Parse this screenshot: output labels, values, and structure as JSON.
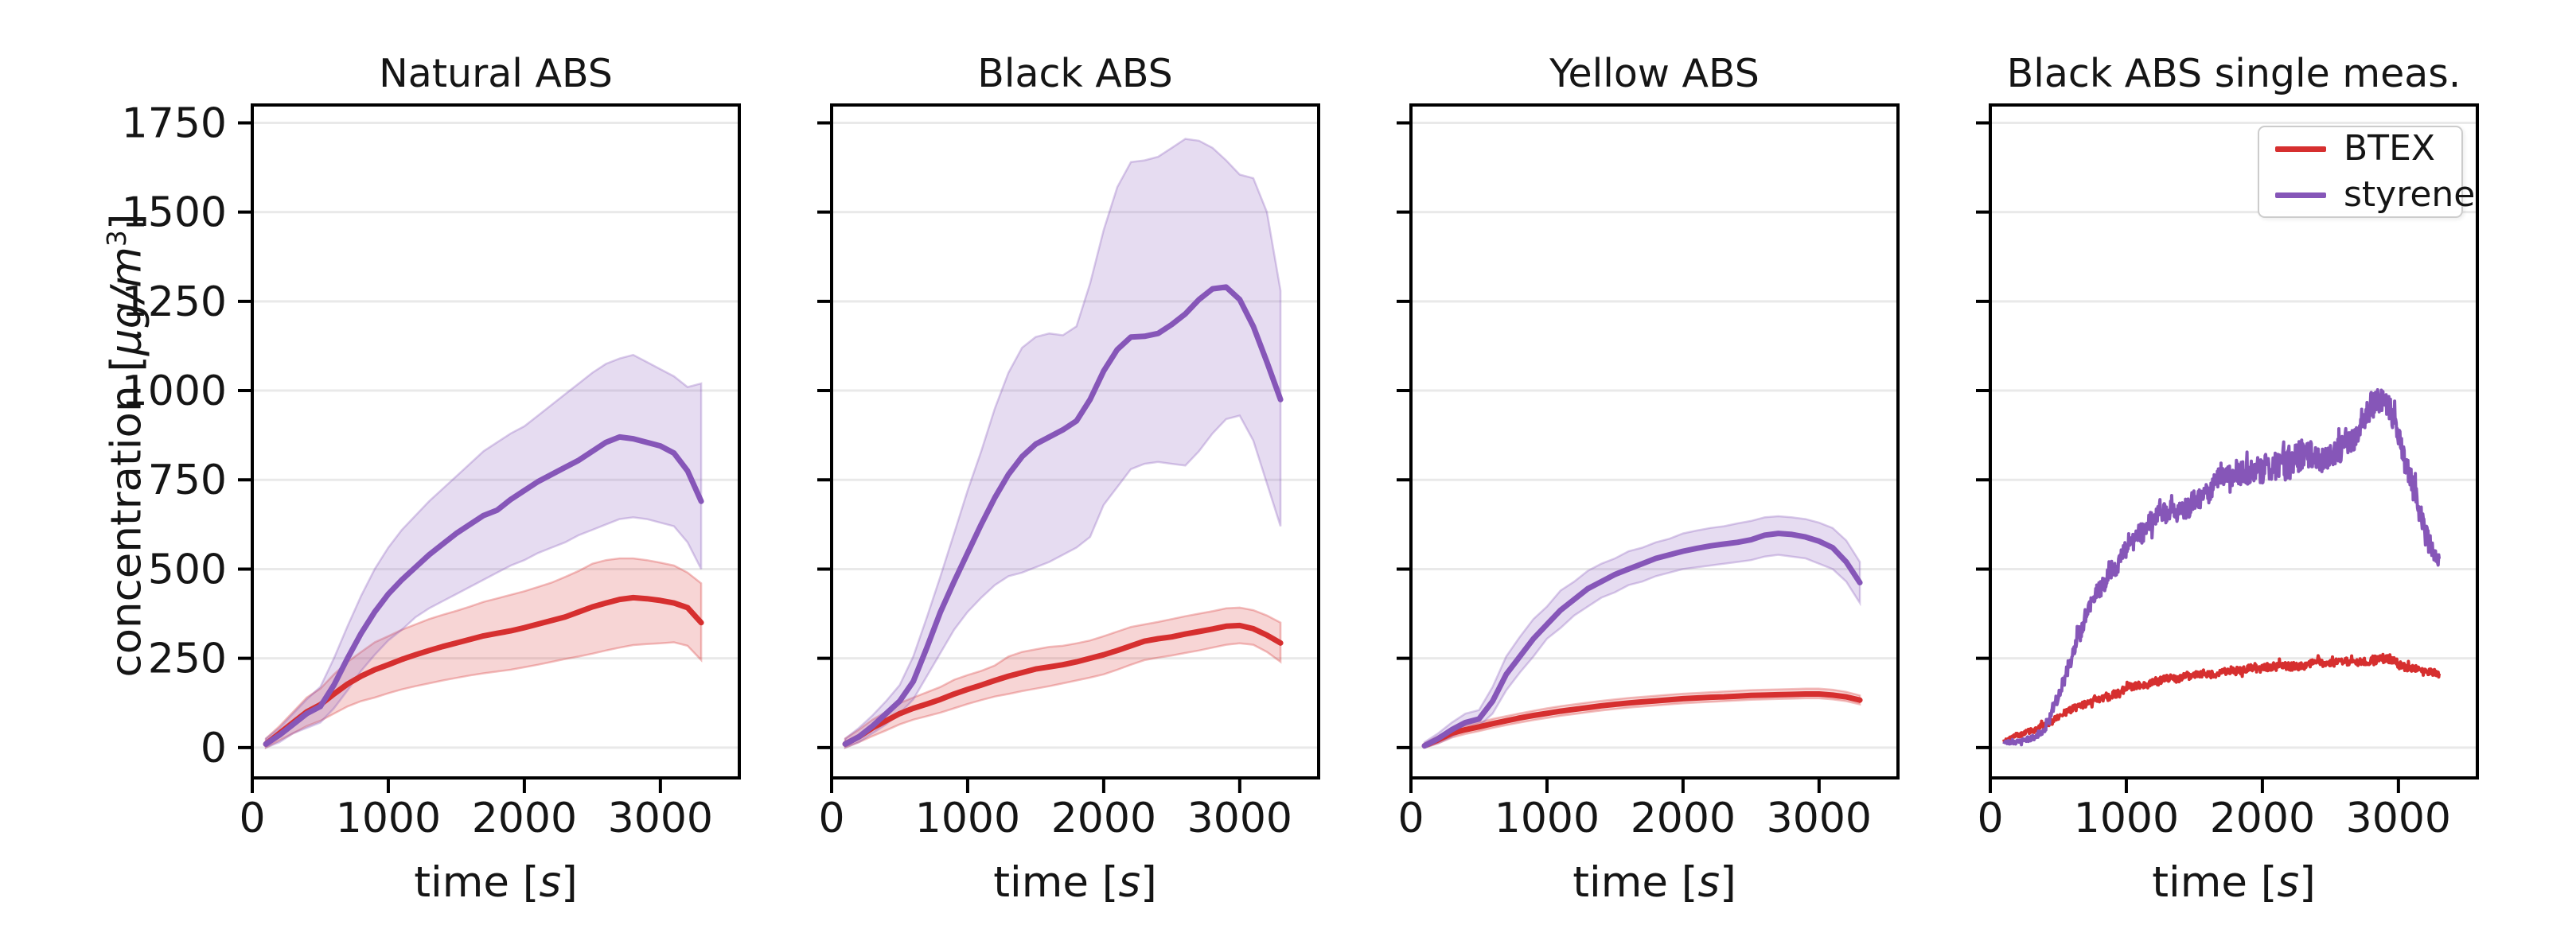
{
  "figure": {
    "ylabel": {
      "prefix": "concentration [",
      "italic_unit": "μg/m",
      "superscript": "3",
      "suffix": "]"
    },
    "xlabel": {
      "prefix": "time [",
      "italic_s": "s",
      "suffix": "]"
    },
    "colors": {
      "btex": "#d62f2f",
      "styrene": "#8656b8",
      "btex_band": "rgba(214,47,47,0.20)",
      "styrene_band": "rgba(140,95,190,0.22)",
      "grid": "#e9e9e9",
      "axis": "#000000",
      "tick_text": "#151515",
      "legend_border": "#cccccc"
    },
    "legend": {
      "items": [
        {
          "label": "BTEX",
          "color_key": "btex"
        },
        {
          "label": "styrene",
          "color_key": "styrene"
        }
      ]
    },
    "y_tick_labels": [
      "0",
      "250",
      "500",
      "750",
      "1000",
      "1250",
      "1500",
      "1750"
    ],
    "x_tick_labels": [
      "0",
      "1000",
      "2000",
      "3000"
    ],
    "y_tick_values": [
      0,
      250,
      500,
      750,
      1000,
      1250,
      1500,
      1750
    ],
    "x_tick_values": [
      0,
      1000,
      2000,
      3000
    ],
    "xlim": [
      0,
      3580
    ],
    "ylim": [
      -85,
      1800
    ],
    "grid": "horizontal-only"
  },
  "chart_data": [
    {
      "type": "line",
      "title": "Natural ABS",
      "x": [
        100,
        200,
        300,
        400,
        500,
        600,
        700,
        800,
        900,
        1000,
        1100,
        1200,
        1300,
        1400,
        1500,
        1600,
        1700,
        1800,
        1900,
        2000,
        2100,
        2200,
        2300,
        2400,
        2500,
        2600,
        2700,
        2800,
        2900,
        3000,
        3100,
        3200,
        3300
      ],
      "series": [
        {
          "name": "BTEX",
          "color_key": "btex",
          "values": [
            10,
            40,
            70,
            100,
            120,
            150,
            178,
            200,
            218,
            232,
            247,
            260,
            272,
            283,
            293,
            303,
            313,
            320,
            327,
            336,
            346,
            356,
            366,
            380,
            394,
            405,
            415,
            420,
            417,
            412,
            405,
            392,
            350
          ],
          "band_low": [
            0,
            20,
            40,
            60,
            75,
            95,
            115,
            130,
            140,
            152,
            163,
            172,
            180,
            188,
            195,
            202,
            208,
            213,
            218,
            225,
            232,
            240,
            248,
            255,
            263,
            272,
            280,
            287,
            290,
            292,
            295,
            285,
            245
          ],
          "band_high": [
            25,
            60,
            100,
            140,
            165,
            205,
            240,
            268,
            295,
            312,
            330,
            345,
            360,
            372,
            383,
            395,
            408,
            418,
            428,
            438,
            450,
            462,
            478,
            495,
            515,
            525,
            530,
            530,
            525,
            518,
            510,
            490,
            460
          ]
        },
        {
          "name": "styrene",
          "color_key": "styrene",
          "values": [
            10,
            35,
            65,
            95,
            115,
            175,
            250,
            320,
            380,
            430,
            470,
            505,
            540,
            570,
            600,
            625,
            650,
            665,
            695,
            720,
            745,
            765,
            785,
            805,
            830,
            855,
            870,
            865,
            855,
            845,
            825,
            775,
            690
          ],
          "band_low": [
            0,
            15,
            40,
            55,
            70,
            110,
            160,
            215,
            260,
            300,
            330,
            365,
            390,
            410,
            430,
            450,
            470,
            490,
            510,
            525,
            545,
            560,
            575,
            595,
            610,
            625,
            640,
            645,
            640,
            630,
            620,
            575,
            500
          ],
          "band_high": [
            25,
            55,
            95,
            135,
            170,
            250,
            340,
            425,
            500,
            560,
            610,
            650,
            690,
            725,
            760,
            795,
            830,
            855,
            880,
            900,
            930,
            960,
            990,
            1020,
            1050,
            1075,
            1090,
            1100,
            1080,
            1060,
            1040,
            1010,
            1020
          ]
        }
      ]
    },
    {
      "type": "line",
      "title": "Black ABS",
      "x": [
        100,
        200,
        300,
        400,
        500,
        600,
        700,
        800,
        900,
        1000,
        1100,
        1200,
        1300,
        1400,
        1500,
        1600,
        1700,
        1800,
        1900,
        2000,
        2100,
        2200,
        2300,
        2400,
        2500,
        2600,
        2700,
        2800,
        2900,
        3000,
        3100,
        3200,
        3300
      ],
      "series": [
        {
          "name": "BTEX",
          "color_key": "btex",
          "values": [
            10,
            30,
            55,
            75,
            95,
            110,
            122,
            135,
            150,
            163,
            175,
            188,
            200,
            210,
            220,
            226,
            232,
            240,
            250,
            260,
            272,
            285,
            298,
            305,
            310,
            318,
            325,
            332,
            340,
            342,
            333,
            315,
            293
          ],
          "band_low": [
            0,
            15,
            32,
            48,
            65,
            78,
            88,
            98,
            110,
            122,
            133,
            143,
            150,
            158,
            165,
            172,
            180,
            188,
            196,
            205,
            218,
            232,
            245,
            252,
            258,
            265,
            272,
            280,
            288,
            292,
            288,
            268,
            240
          ],
          "band_high": [
            25,
            50,
            78,
            100,
            125,
            140,
            155,
            170,
            190,
            203,
            215,
            230,
            255,
            268,
            275,
            282,
            285,
            292,
            300,
            312,
            325,
            338,
            345,
            352,
            360,
            368,
            375,
            382,
            390,
            392,
            385,
            370,
            350
          ]
        },
        {
          "name": "styrene",
          "color_key": "styrene",
          "values": [
            10,
            30,
            60,
            95,
            130,
            185,
            280,
            380,
            465,
            545,
            625,
            700,
            765,
            815,
            850,
            870,
            890,
            915,
            975,
            1055,
            1115,
            1150,
            1152,
            1160,
            1185,
            1215,
            1255,
            1285,
            1290,
            1255,
            1180,
            1080,
            975
          ],
          "band_low": [
            0,
            15,
            40,
            65,
            95,
            135,
            200,
            265,
            330,
            380,
            420,
            455,
            480,
            490,
            505,
            520,
            540,
            560,
            590,
            680,
            730,
            780,
            795,
            800,
            795,
            790,
            830,
            880,
            920,
            930,
            860,
            740,
            620
          ],
          "band_high": [
            25,
            55,
            90,
            130,
            175,
            255,
            365,
            480,
            600,
            720,
            830,
            950,
            1050,
            1120,
            1150,
            1160,
            1155,
            1180,
            1300,
            1450,
            1570,
            1640,
            1645,
            1655,
            1680,
            1705,
            1700,
            1680,
            1645,
            1605,
            1595,
            1500,
            1280
          ]
        }
      ]
    },
    {
      "type": "line",
      "title": "Yellow ABS",
      "x": [
        100,
        200,
        300,
        400,
        500,
        600,
        700,
        800,
        900,
        1000,
        1100,
        1200,
        1300,
        1400,
        1500,
        1600,
        1700,
        1800,
        1900,
        2000,
        2100,
        2200,
        2300,
        2400,
        2500,
        2600,
        2700,
        2800,
        2900,
        3000,
        3100,
        3200,
        3300
      ],
      "series": [
        {
          "name": "BTEX",
          "color_key": "btex",
          "values": [
            5,
            22,
            40,
            50,
            58,
            67,
            75,
            83,
            90,
            96,
            102,
            107,
            112,
            117,
            121,
            125,
            128,
            131,
            134,
            137,
            139,
            141,
            142,
            144,
            146,
            147,
            148,
            149,
            150,
            150,
            147,
            142,
            133
          ],
          "band_low": [
            0,
            12,
            28,
            38,
            46,
            55,
            63,
            70,
            77,
            83,
            89,
            94,
            99,
            104,
            108,
            112,
            115,
            118,
            121,
            124,
            126,
            128,
            130,
            132,
            134,
            135,
            136,
            137,
            138,
            138,
            135,
            130,
            121
          ],
          "band_high": [
            12,
            32,
            52,
            62,
            70,
            80,
            88,
            96,
            103,
            110,
            116,
            121,
            126,
            131,
            135,
            139,
            142,
            145,
            148,
            151,
            153,
            155,
            157,
            159,
            161,
            162,
            163,
            164,
            165,
            165,
            162,
            156,
            146
          ]
        },
        {
          "name": "styrene",
          "color_key": "styrene",
          "values": [
            5,
            25,
            50,
            70,
            80,
            130,
            205,
            255,
            305,
            345,
            385,
            415,
            445,
            465,
            485,
            500,
            515,
            530,
            540,
            550,
            558,
            565,
            570,
            575,
            582,
            595,
            600,
            597,
            590,
            578,
            560,
            520,
            462
          ],
          "band_low": [
            0,
            12,
            30,
            50,
            60,
            95,
            160,
            210,
            255,
            305,
            335,
            370,
            395,
            420,
            435,
            455,
            465,
            480,
            490,
            500,
            505,
            510,
            515,
            520,
            525,
            535,
            540,
            535,
            530,
            515,
            500,
            465,
            405
          ],
          "band_high": [
            15,
            40,
            70,
            95,
            105,
            170,
            255,
            310,
            360,
            395,
            440,
            465,
            495,
            515,
            530,
            550,
            560,
            575,
            585,
            600,
            608,
            615,
            620,
            628,
            635,
            645,
            648,
            645,
            640,
            630,
            615,
            580,
            520
          ]
        }
      ]
    },
    {
      "type": "line",
      "title": "Black ABS single meas.",
      "x": [
        100,
        200,
        300,
        400,
        500,
        600,
        700,
        800,
        900,
        1000,
        1100,
        1200,
        1300,
        1400,
        1500,
        1600,
        1700,
        1800,
        1900,
        2000,
        2100,
        2200,
        2300,
        2400,
        2500,
        2600,
        2700,
        2800,
        2900,
        3000,
        3100,
        3200,
        3300
      ],
      "series": [
        {
          "name": "BTEX",
          "color_key": "btex",
          "noisy": true,
          "values": [
            20,
            35,
            45,
            65,
            85,
            105,
            125,
            140,
            155,
            165,
            175,
            185,
            192,
            198,
            203,
            208,
            212,
            217,
            222,
            225,
            228,
            230,
            232,
            235,
            238,
            242,
            245,
            252,
            258,
            238,
            222,
            208,
            198
          ],
          "noise_amp": [
            6,
            7,
            8,
            9,
            10,
            10,
            11,
            11,
            12,
            12,
            12,
            12,
            12,
            12,
            12,
            12,
            12,
            12,
            12,
            12,
            12,
            12,
            12,
            12,
            12,
            12,
            13,
            14,
            14,
            13,
            12,
            12,
            12
          ]
        },
        {
          "name": "styrene",
          "color_key": "styrene",
          "noisy": true,
          "values": [
            15,
            20,
            30,
            50,
            140,
            250,
            350,
            430,
            490,
            540,
            580,
            620,
            655,
            685,
            705,
            735,
            765,
            790,
            800,
            812,
            822,
            832,
            842,
            832,
            852,
            872,
            905,
            990,
            1000,
            890,
            740,
            620,
            555
          ],
          "noise_amp": [
            8,
            8,
            10,
            15,
            20,
            25,
            28,
            30,
            30,
            30,
            32,
            34,
            34,
            34,
            34,
            36,
            36,
            38,
            40,
            45,
            50,
            55,
            50,
            55,
            45,
            45,
            40,
            45,
            40,
            35,
            40,
            40,
            35
          ]
        }
      ]
    }
  ]
}
